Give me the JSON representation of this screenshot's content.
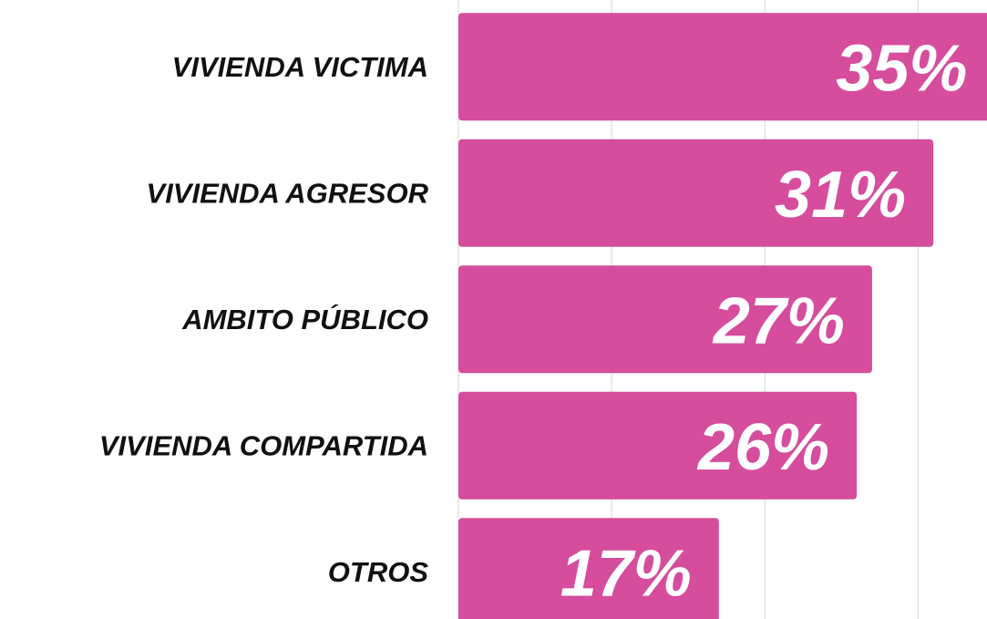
{
  "chart_data": {
    "type": "hbar",
    "categories": [
      "VIVIENDA VICTIMA",
      "VIVIENDA AGRESOR",
      "AMBITO PÚBLICO",
      "VIVIENDA COMPARTIDA",
      "OTROS"
    ],
    "values": [
      35,
      31,
      27,
      26,
      17
    ],
    "value_labels": [
      "35%",
      "31%",
      "27%",
      "26%",
      "17%"
    ],
    "color": "#d54d9c",
    "xlim": [
      0,
      34.5
    ],
    "xticks": [
      0,
      10,
      20,
      30
    ],
    "grid": true
  }
}
